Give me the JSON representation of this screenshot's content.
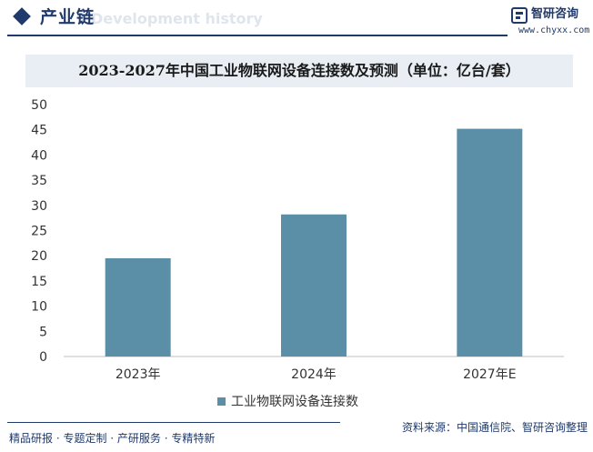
{
  "header": {
    "section_title": "产业链",
    "ghost_text": "Development history"
  },
  "logo": {
    "name": "智研咨询",
    "url": "www.chyxx.com"
  },
  "footer": {
    "services": "精品研报 · 专题定制 · 产研服务 · 专精特新",
    "source": "资料来源：中国通信院、智研咨询整理"
  },
  "colors": {
    "brand": "#1f3a6b",
    "bar": "#5b8fa8",
    "title_band": "#e8eef4"
  },
  "chart_data": {
    "type": "bar",
    "title": "2023-2027年中国工业物联网设备连接数及预测（单位：亿台/套）",
    "categories": [
      "2023年",
      "2024年",
      "2027年E"
    ],
    "series": [
      {
        "name": "工业物联网设备连接数",
        "values": [
          19.5,
          28.2,
          45.2
        ]
      }
    ],
    "ylim": [
      0,
      50
    ],
    "yticks": [
      0,
      5,
      10,
      15,
      20,
      25,
      30,
      35,
      40,
      45,
      50
    ],
    "legend_position": "bottom",
    "grid": false
  }
}
